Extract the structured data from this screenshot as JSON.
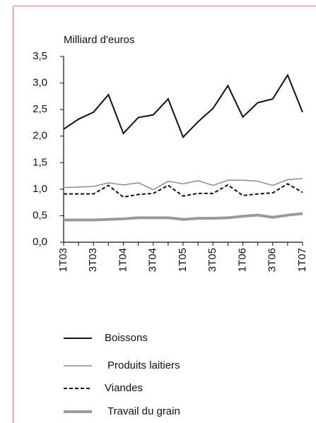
{
  "chart_data": {
    "type": "line",
    "y_label": "Milliard d'euros",
    "categories": [
      "1T03",
      null,
      "3T03",
      null,
      "1T04",
      null,
      "3T04",
      null,
      "1T05",
      null,
      "3T05",
      null,
      "1T06",
      null,
      "3T06",
      null,
      "1T07"
    ],
    "series": [
      {
        "name": "Boissons",
        "color": "#111111",
        "width": 2,
        "dashed": false,
        "values": [
          2.13,
          2.32,
          2.45,
          2.78,
          2.05,
          2.35,
          2.4,
          2.7,
          1.98,
          2.27,
          2.52,
          2.95,
          2.36,
          2.63,
          2.7,
          3.15,
          2.45
        ]
      },
      {
        "name": "Produits laitiers",
        "color": "#8c8c8c",
        "width": 1.5,
        "dashed": false,
        "values": [
          1.03,
          1.04,
          1.05,
          1.12,
          1.08,
          1.12,
          0.99,
          1.15,
          1.1,
          1.16,
          1.07,
          1.17,
          1.17,
          1.15,
          1.07,
          1.18,
          1.2
        ]
      },
      {
        "name": "Viandes",
        "color": "#111111",
        "width": 2,
        "dashed": true,
        "values": [
          0.91,
          0.91,
          0.91,
          1.07,
          0.85,
          0.9,
          0.92,
          1.07,
          0.87,
          0.92,
          0.92,
          1.08,
          0.88,
          0.91,
          0.93,
          1.1,
          0.94
        ]
      },
      {
        "name": "Travail du grain",
        "color": "#9a9a9a",
        "width": 4,
        "dashed": false,
        "values": [
          0.42,
          0.42,
          0.42,
          0.43,
          0.44,
          0.46,
          0.46,
          0.46,
          0.43,
          0.45,
          0.45,
          0.46,
          0.49,
          0.51,
          0.47,
          0.51,
          0.54
        ]
      }
    ],
    "ylim": [
      0,
      3.5
    ],
    "yticks": [
      {
        "value": 0,
        "label": "0,0"
      },
      {
        "value": 0.5,
        "label": "0,5"
      },
      {
        "value": 1,
        "label": "1,0"
      },
      {
        "value": 1.5,
        "label": "1,5"
      },
      {
        "value": 2,
        "label": "2,0"
      },
      {
        "value": 2.5,
        "label": "2,5"
      },
      {
        "value": 3,
        "label": "3,0"
      },
      {
        "value": 3.5,
        "label": "3,5"
      }
    ],
    "grid": false
  }
}
